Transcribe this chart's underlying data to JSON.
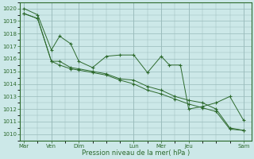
{
  "title": "",
  "xlabel": "Pression niveau de la mer( hPa )",
  "background_color": "#cce8e8",
  "plot_bg_color": "#cce8e8",
  "grid_color": "#99bbbb",
  "line_color": "#2d6a2d",
  "ylim": [
    1009.5,
    1020.5
  ],
  "ytick_values": [
    1010,
    1011,
    1012,
    1013,
    1014,
    1015,
    1016,
    1017,
    1018,
    1019,
    1020
  ],
  "day_names": [
    "Mar",
    "Ven",
    "Dim",
    "Lun",
    "Mer",
    "Jeu",
    "Sam"
  ],
  "day_x": [
    0,
    1,
    2,
    4,
    5,
    6,
    8
  ],
  "series1_x": [
    0.0,
    0.5,
    1.0,
    1.3,
    1.7,
    2.0,
    2.5,
    3.0,
    3.5,
    4.0,
    4.5,
    5.0,
    5.3,
    5.7,
    6.0,
    6.5,
    7.0,
    7.5,
    8.0
  ],
  "series1_y": [
    1020.0,
    1019.5,
    1016.7,
    1017.8,
    1017.2,
    1015.8,
    1015.3,
    1016.2,
    1016.3,
    1016.3,
    1014.9,
    1016.2,
    1015.5,
    1015.5,
    1012.0,
    1012.2,
    1012.5,
    1013.0,
    1011.1
  ],
  "series2_x": [
    0.0,
    0.5,
    1.0,
    1.3,
    1.7,
    2.0,
    2.5,
    3.0,
    3.5,
    4.0,
    4.5,
    5.0,
    5.5,
    6.0,
    6.5,
    7.0,
    7.5,
    8.0
  ],
  "series2_y": [
    1019.6,
    1019.2,
    1015.8,
    1015.8,
    1015.3,
    1015.2,
    1015.0,
    1014.8,
    1014.4,
    1014.3,
    1013.8,
    1013.5,
    1013.0,
    1012.7,
    1012.5,
    1012.0,
    1010.5,
    1010.3
  ],
  "series3_x": [
    0.0,
    0.5,
    1.0,
    1.3,
    1.7,
    2.0,
    2.5,
    3.0,
    3.5,
    4.0,
    4.5,
    5.0,
    5.5,
    6.0,
    6.5,
    7.0,
    7.5,
    8.0
  ],
  "series3_y": [
    1019.6,
    1019.2,
    1015.8,
    1015.5,
    1015.2,
    1015.1,
    1014.9,
    1014.7,
    1014.3,
    1014.0,
    1013.5,
    1013.2,
    1012.8,
    1012.4,
    1012.1,
    1011.8,
    1010.4,
    1010.3
  ]
}
